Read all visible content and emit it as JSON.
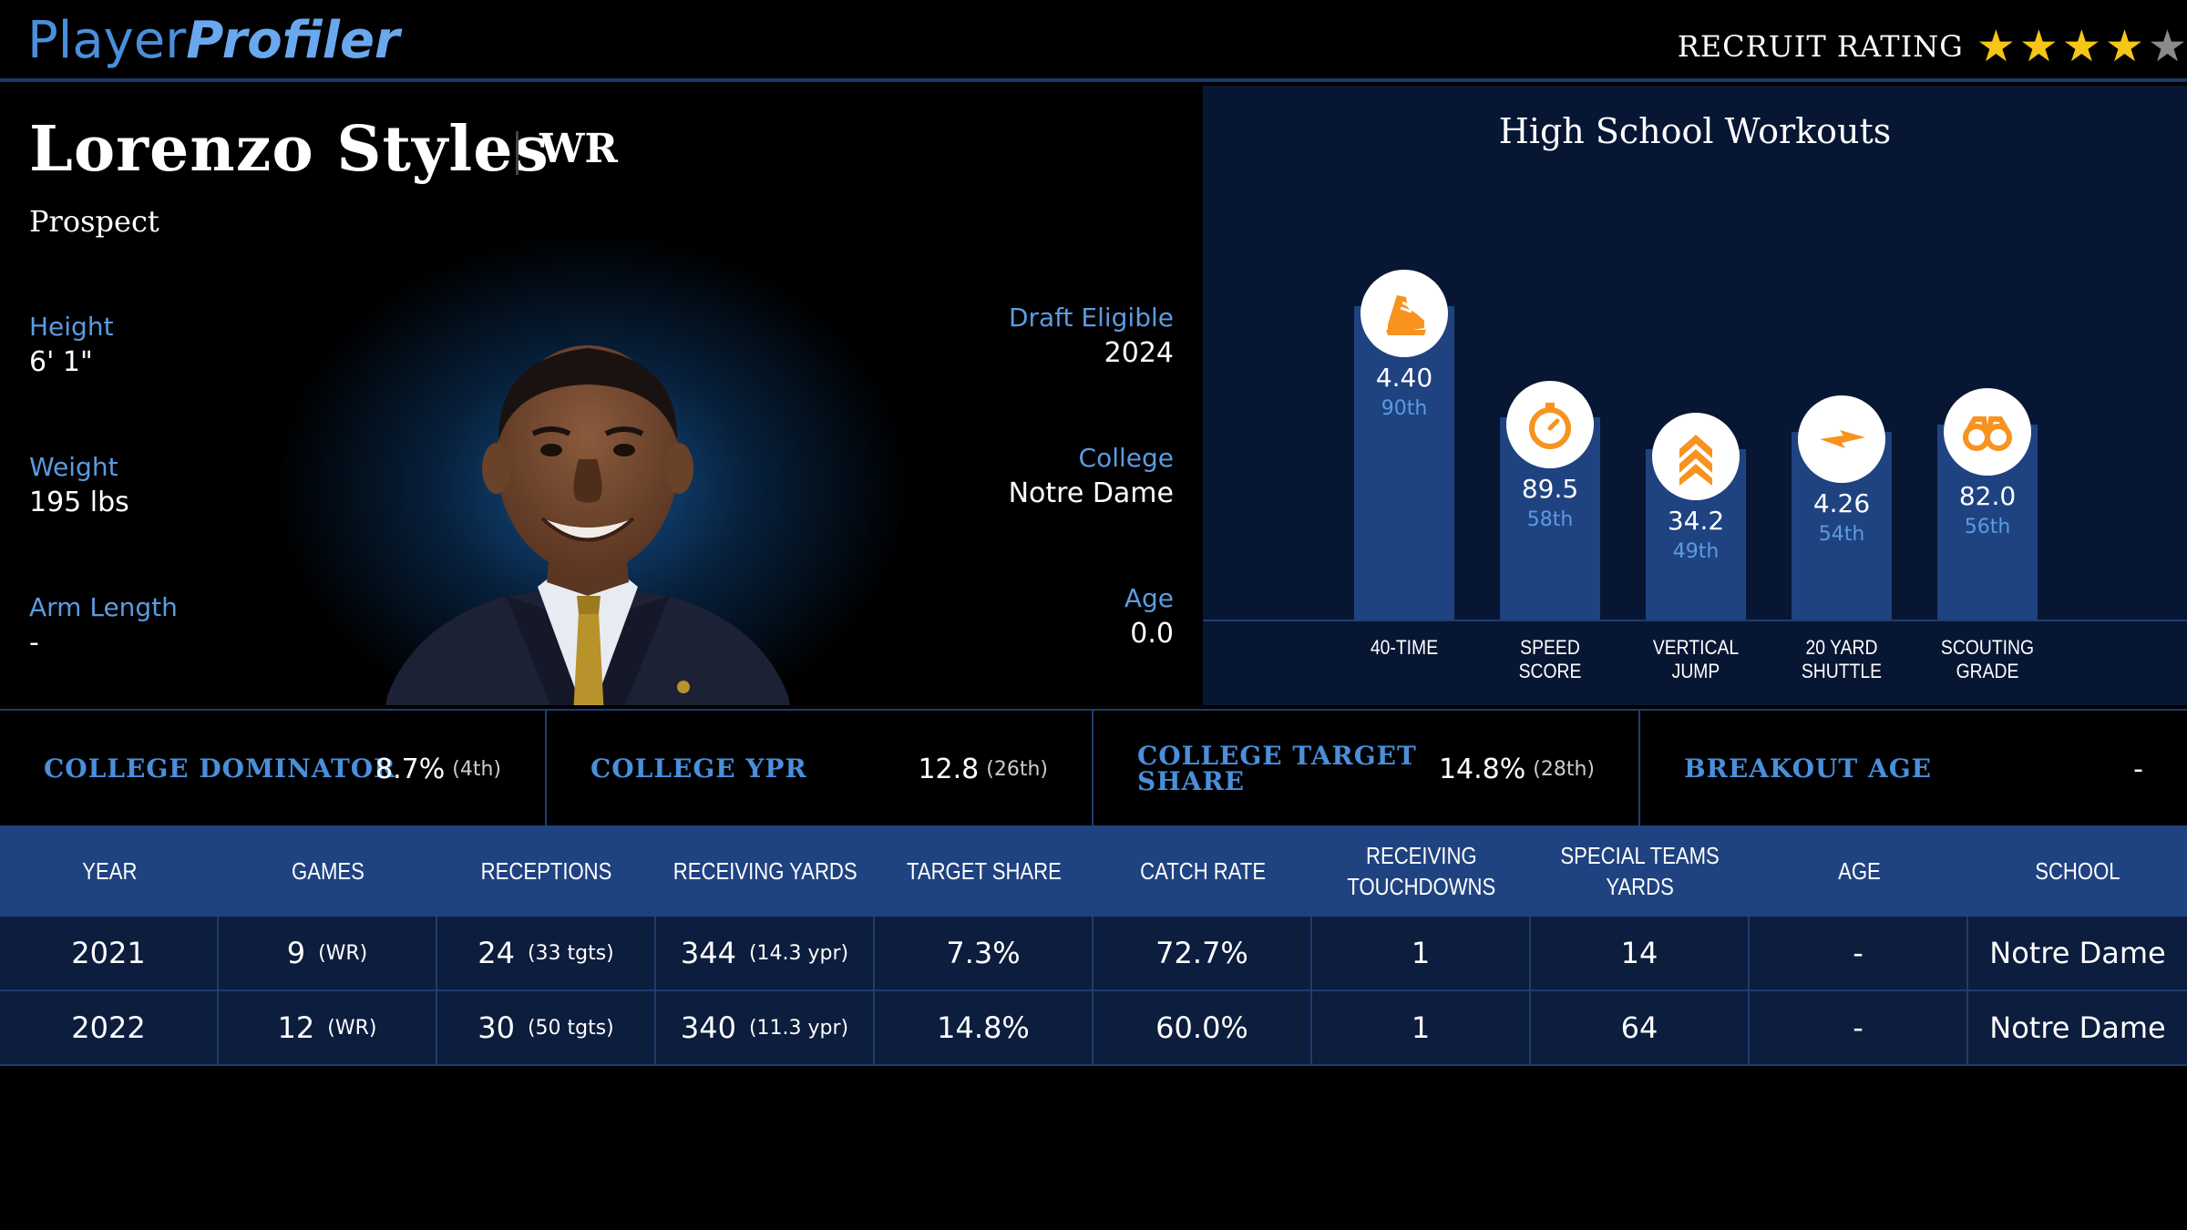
{
  "header": {
    "logo_part1": "Player",
    "logo_part2": "Profiler",
    "recruit_label": "RECRUIT RATING",
    "stars_filled": 4,
    "stars_total": 5
  },
  "profile": {
    "name": "Lorenzo Styles",
    "position": "WR",
    "status": "Prospect",
    "height_label": "Height",
    "height_value": "6' 1\"",
    "weight_label": "Weight",
    "weight_value": "195 lbs",
    "arm_label": "Arm Length",
    "arm_value": "-",
    "draft_label": "Draft Eligible",
    "draft_value": "2024",
    "college_label": "College",
    "college_value": "Notre Dame",
    "age_label": "Age",
    "age_value": "0.0"
  },
  "workouts": {
    "title": "High School Workouts",
    "items": [
      {
        "value": "4.40",
        "percentile": "90th",
        "percentile_num": 90,
        "label_l1": "40-TIME",
        "label_l2": "",
        "icon": "shoe-icon"
      },
      {
        "value": "89.5",
        "percentile": "58th",
        "percentile_num": 58,
        "label_l1": "SPEED",
        "label_l2": "SCORE",
        "icon": "stopwatch-icon"
      },
      {
        "value": "34.2",
        "percentile": "49th",
        "percentile_num": 49,
        "label_l1": "VERTICAL",
        "label_l2": "JUMP",
        "icon": "chevrons-up-icon"
      },
      {
        "value": "4.26",
        "percentile": "54th",
        "percentile_num": 54,
        "label_l1": "20 YARD",
        "label_l2": "SHUTTLE",
        "icon": "lightning-icon"
      },
      {
        "value": "82.0",
        "percentile": "56th",
        "percentile_num": 56,
        "label_l1": "SCOUTING",
        "label_l2": "GRADE",
        "icon": "binoculars-icon"
      }
    ]
  },
  "stats": [
    {
      "label_l1": "COLLEGE DOMINATOR",
      "label_l2": "",
      "value": "8.7%",
      "rank": "(4th)"
    },
    {
      "label_l1": "COLLEGE YPR",
      "label_l2": "",
      "value": "12.8",
      "rank": "(26th)"
    },
    {
      "label_l1": "COLLEGE TARGET",
      "label_l2": "SHARE",
      "value": "14.8%",
      "rank": "(28th)"
    },
    {
      "label_l1": "BREAKOUT AGE",
      "label_l2": "",
      "value": "-",
      "rank": ""
    }
  ],
  "table": {
    "headers": [
      {
        "l1": "YEAR",
        "l2": ""
      },
      {
        "l1": "GAMES",
        "l2": ""
      },
      {
        "l1": "RECEPTIONS",
        "l2": ""
      },
      {
        "l1": "RECEIVING YARDS",
        "l2": ""
      },
      {
        "l1": "TARGET SHARE",
        "l2": ""
      },
      {
        "l1": "CATCH RATE",
        "l2": ""
      },
      {
        "l1": "RECEIVING",
        "l2": "TOUCHDOWNS"
      },
      {
        "l1": "SPECIAL TEAMS",
        "l2": "YARDS"
      },
      {
        "l1": "AGE",
        "l2": ""
      },
      {
        "l1": "SCHOOL",
        "l2": ""
      }
    ],
    "rows": [
      {
        "year": "2021",
        "games": "9",
        "games_sub": "(WR)",
        "rec": "24",
        "rec_sub": "(33 tgts)",
        "yards": "344",
        "yards_sub": "(14.3 ypr)",
        "target_share": "7.3%",
        "catch_rate": "72.7%",
        "td": "1",
        "st_yards": "14",
        "age": "-",
        "school": "Notre Dame"
      },
      {
        "year": "2022",
        "games": "12",
        "games_sub": "(WR)",
        "rec": "30",
        "rec_sub": "(50 tgts)",
        "yards": "340",
        "yards_sub": "(11.3 ypr)",
        "target_share": "14.8%",
        "catch_rate": "60.0%",
        "td": "1",
        "st_yards": "64",
        "age": "-",
        "school": "Notre Dame"
      }
    ]
  },
  "colors": {
    "accent_blue": "#4a8fdb",
    "bar_blue": "#1f4281",
    "icon_orange": "#f7931e",
    "star_gold": "#f5c518"
  }
}
